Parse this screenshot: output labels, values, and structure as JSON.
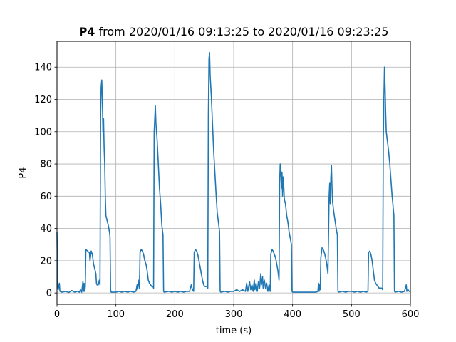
{
  "chart_data": {
    "type": "line",
    "title_bold": "P4",
    "title_rest": " from 2020/01/16 09:13:25 to 2020/01/16 09:23:25",
    "xlabel": "time (s)",
    "ylabel": "P4",
    "xlim": [
      0,
      600
    ],
    "ylim": [
      -7,
      156
    ],
    "xticks": [
      0,
      100,
      200,
      300,
      400,
      500,
      600
    ],
    "yticks": [
      0,
      20,
      40,
      60,
      80,
      100,
      120,
      140
    ],
    "grid": true,
    "line_color": "#1f77b4",
    "series": [
      {
        "values": [
          [
            0,
            38
          ],
          [
            1,
            5
          ],
          [
            2,
            2
          ],
          [
            4,
            6
          ],
          [
            5,
            1
          ],
          [
            8,
            0.5
          ],
          [
            15,
            1
          ],
          [
            20,
            0.3
          ],
          [
            25,
            1.5
          ],
          [
            30,
            0.5
          ],
          [
            35,
            1
          ],
          [
            38,
            0.5
          ],
          [
            40,
            2
          ],
          [
            42,
            0.5
          ],
          [
            44,
            7
          ],
          [
            45,
            1
          ],
          [
            46,
            6
          ],
          [
            47,
            1
          ],
          [
            48,
            4
          ],
          [
            49,
            27
          ],
          [
            52,
            26
          ],
          [
            55,
            25
          ],
          [
            56,
            20
          ],
          [
            58,
            26
          ],
          [
            60,
            24
          ],
          [
            62,
            18
          ],
          [
            64,
            15
          ],
          [
            66,
            12
          ],
          [
            67,
            6
          ],
          [
            68,
            5
          ],
          [
            70,
            5
          ],
          [
            72,
            8
          ],
          [
            73,
            5
          ],
          [
            74,
            110
          ],
          [
            75,
            128
          ],
          [
            76,
            132
          ],
          [
            77,
            120
          ],
          [
            78,
            100
          ],
          [
            79,
            108
          ],
          [
            80,
            90
          ],
          [
            81,
            80
          ],
          [
            82,
            60
          ],
          [
            83,
            48
          ],
          [
            85,
            45
          ],
          [
            87,
            42
          ],
          [
            89,
            38
          ],
          [
            90,
            35
          ],
          [
            91,
            2
          ],
          [
            92,
            0.5
          ],
          [
            95,
            0.5
          ],
          [
            100,
            0.5
          ],
          [
            105,
            1
          ],
          [
            110,
            0.5
          ],
          [
            115,
            1
          ],
          [
            120,
            0.5
          ],
          [
            125,
            1
          ],
          [
            130,
            0.5
          ],
          [
            134,
            1
          ],
          [
            136,
            5
          ],
          [
            137,
            2
          ],
          [
            138,
            8
          ],
          [
            140,
            3
          ],
          [
            141,
            25
          ],
          [
            143,
            27
          ],
          [
            145,
            26
          ],
          [
            147,
            24
          ],
          [
            149,
            20
          ],
          [
            151,
            18
          ],
          [
            153,
            14
          ],
          [
            155,
            8
          ],
          [
            157,
            6
          ],
          [
            159,
            5
          ],
          [
            161,
            4
          ],
          [
            163,
            4
          ],
          [
            164,
            3
          ],
          [
            165,
            100
          ],
          [
            167,
            116
          ],
          [
            168,
            105
          ],
          [
            170,
            95
          ],
          [
            172,
            80
          ],
          [
            174,
            65
          ],
          [
            176,
            55
          ],
          [
            178,
            42
          ],
          [
            180,
            36
          ],
          [
            181,
            1
          ],
          [
            182,
            0.5
          ],
          [
            190,
            1
          ],
          [
            195,
            0.5
          ],
          [
            200,
            1
          ],
          [
            205,
            0.5
          ],
          [
            210,
            1
          ],
          [
            215,
            0.5
          ],
          [
            220,
            1
          ],
          [
            225,
            1
          ],
          [
            228,
            5
          ],
          [
            230,
            2
          ],
          [
            232,
            1
          ],
          [
            233,
            25
          ],
          [
            235,
            27
          ],
          [
            237,
            26
          ],
          [
            239,
            24
          ],
          [
            241,
            20
          ],
          [
            243,
            16
          ],
          [
            245,
            12
          ],
          [
            247,
            8
          ],
          [
            249,
            5
          ],
          [
            251,
            4
          ],
          [
            253,
            4
          ],
          [
            255,
            4
          ],
          [
            256,
            3
          ],
          [
            257,
            110
          ],
          [
            258,
            145
          ],
          [
            259,
            149
          ],
          [
            260,
            135
          ],
          [
            262,
            122
          ],
          [
            264,
            105
          ],
          [
            266,
            88
          ],
          [
            268,
            75
          ],
          [
            270,
            62
          ],
          [
            272,
            50
          ],
          [
            274,
            44
          ],
          [
            276,
            38
          ],
          [
            277,
            1
          ],
          [
            278,
            0.5
          ],
          [
            285,
            1
          ],
          [
            290,
            0.5
          ],
          [
            295,
            1
          ],
          [
            300,
            1
          ],
          [
            305,
            2
          ],
          [
            310,
            1
          ],
          [
            315,
            2
          ],
          [
            320,
            1
          ],
          [
            322,
            6
          ],
          [
            324,
            1
          ],
          [
            325,
            3
          ],
          [
            327,
            7
          ],
          [
            329,
            2
          ],
          [
            331,
            5
          ],
          [
            333,
            1
          ],
          [
            335,
            8
          ],
          [
            336,
            2
          ],
          [
            338,
            6
          ],
          [
            340,
            1
          ],
          [
            342,
            7
          ],
          [
            344,
            3
          ],
          [
            346,
            12
          ],
          [
            347,
            5
          ],
          [
            349,
            10
          ],
          [
            350,
            3
          ],
          [
            352,
            8
          ],
          [
            354,
            3
          ],
          [
            356,
            6
          ],
          [
            358,
            1
          ],
          [
            360,
            5
          ],
          [
            362,
            1
          ],
          [
            363,
            24
          ],
          [
            365,
            27
          ],
          [
            367,
            26
          ],
          [
            369,
            24
          ],
          [
            371,
            22
          ],
          [
            373,
            18
          ],
          [
            375,
            14
          ],
          [
            377,
            8
          ],
          [
            378,
            68
          ],
          [
            379,
            80
          ],
          [
            380,
            78
          ],
          [
            381,
            65
          ],
          [
            382,
            75
          ],
          [
            383,
            60
          ],
          [
            384,
            72
          ],
          [
            385,
            66
          ],
          [
            386,
            58
          ],
          [
            388,
            55
          ],
          [
            390,
            48
          ],
          [
            392,
            44
          ],
          [
            394,
            38
          ],
          [
            396,
            34
          ],
          [
            398,
            30
          ],
          [
            399,
            1
          ],
          [
            400,
            0.5
          ],
          [
            410,
            0.5
          ],
          [
            420,
            0.5
          ],
          [
            430,
            0.5
          ],
          [
            440,
            0.5
          ],
          [
            443,
            1
          ],
          [
            444,
            6
          ],
          [
            445,
            1
          ],
          [
            446,
            5
          ],
          [
            447,
            2
          ],
          [
            448,
            22
          ],
          [
            450,
            28
          ],
          [
            452,
            27
          ],
          [
            454,
            25
          ],
          [
            456,
            22
          ],
          [
            458,
            18
          ],
          [
            460,
            12
          ],
          [
            462,
            60
          ],
          [
            463,
            68
          ],
          [
            464,
            55
          ],
          [
            465,
            72
          ],
          [
            466,
            79
          ],
          [
            467,
            65
          ],
          [
            468,
            56
          ],
          [
            470,
            50
          ],
          [
            472,
            45
          ],
          [
            474,
            40
          ],
          [
            476,
            36
          ],
          [
            477,
            1
          ],
          [
            478,
            0.5
          ],
          [
            485,
            1
          ],
          [
            490,
            0.5
          ],
          [
            495,
            1
          ],
          [
            500,
            1
          ],
          [
            505,
            0.5
          ],
          [
            510,
            1
          ],
          [
            515,
            0.5
          ],
          [
            520,
            1
          ],
          [
            525,
            0.5
          ],
          [
            528,
            1
          ],
          [
            529,
            25
          ],
          [
            531,
            26
          ],
          [
            533,
            24
          ],
          [
            535,
            20
          ],
          [
            537,
            14
          ],
          [
            539,
            8
          ],
          [
            541,
            6
          ],
          [
            543,
            5
          ],
          [
            545,
            4
          ],
          [
            547,
            3
          ],
          [
            549,
            3
          ],
          [
            551,
            3
          ],
          [
            553,
            2
          ],
          [
            554,
            95
          ],
          [
            555,
            120
          ],
          [
            556,
            140
          ],
          [
            557,
            128
          ],
          [
            558,
            112
          ],
          [
            559,
            100
          ],
          [
            561,
            94
          ],
          [
            563,
            88
          ],
          [
            565,
            80
          ],
          [
            567,
            70
          ],
          [
            569,
            60
          ],
          [
            571,
            52
          ],
          [
            572,
            48
          ],
          [
            573,
            1
          ],
          [
            574,
            0.5
          ],
          [
            580,
            1
          ],
          [
            585,
            0.5
          ],
          [
            590,
            1
          ],
          [
            593,
            5
          ],
          [
            594,
            1
          ],
          [
            596,
            2
          ],
          [
            598,
            1
          ],
          [
            600,
            1
          ]
        ]
      }
    ]
  }
}
